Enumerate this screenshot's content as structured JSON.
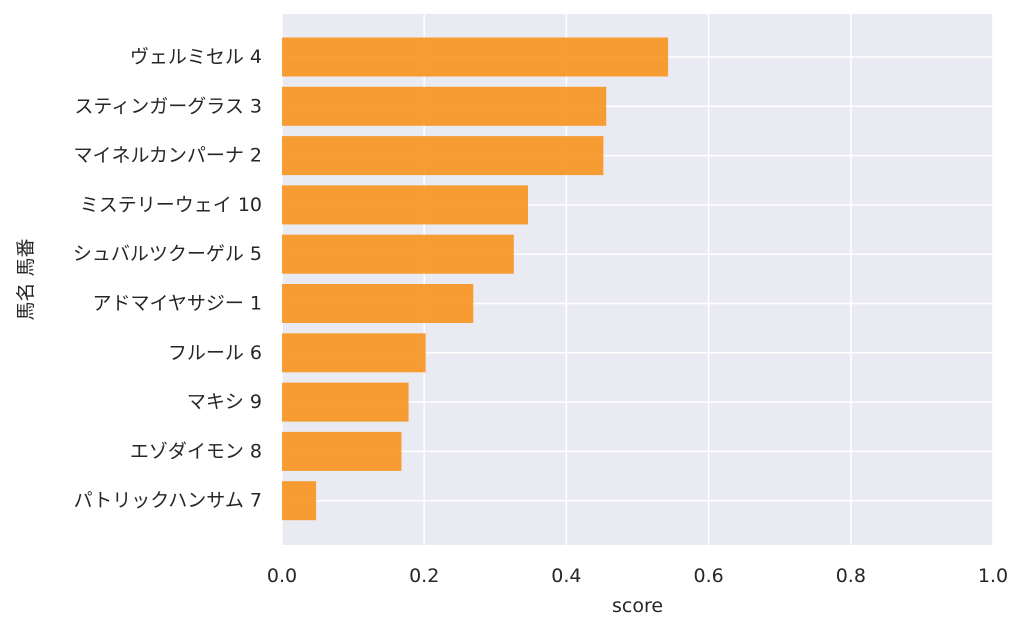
{
  "chart_data": {
    "type": "bar",
    "orientation": "horizontal",
    "categories": [
      "ヴェルミセル 4",
      "スティンガーグラス 3",
      "マイネルカンパーナ 2",
      "ミステリーウェイ 10",
      "シュバルツクーゲル 5",
      "アドマイヤサジー 1",
      "フルール 6",
      "マキシ 9",
      "エゾダイモン 8",
      "パトリックハンサム 7"
    ],
    "values": [
      0.543,
      0.456,
      0.452,
      0.346,
      0.326,
      0.269,
      0.202,
      0.178,
      0.168,
      0.048
    ],
    "xlabel": "score",
    "ylabel": "馬名 馬番",
    "xlim": [
      0.0,
      1.0
    ],
    "xticks": [
      "0.0",
      "0.2",
      "0.4",
      "0.6",
      "0.8",
      "1.0"
    ],
    "grid": true,
    "colors": {
      "bar": "#f7931e",
      "plot_background": "#eaeaf2",
      "grid": "#ffffff",
      "text": "#262626"
    }
  }
}
